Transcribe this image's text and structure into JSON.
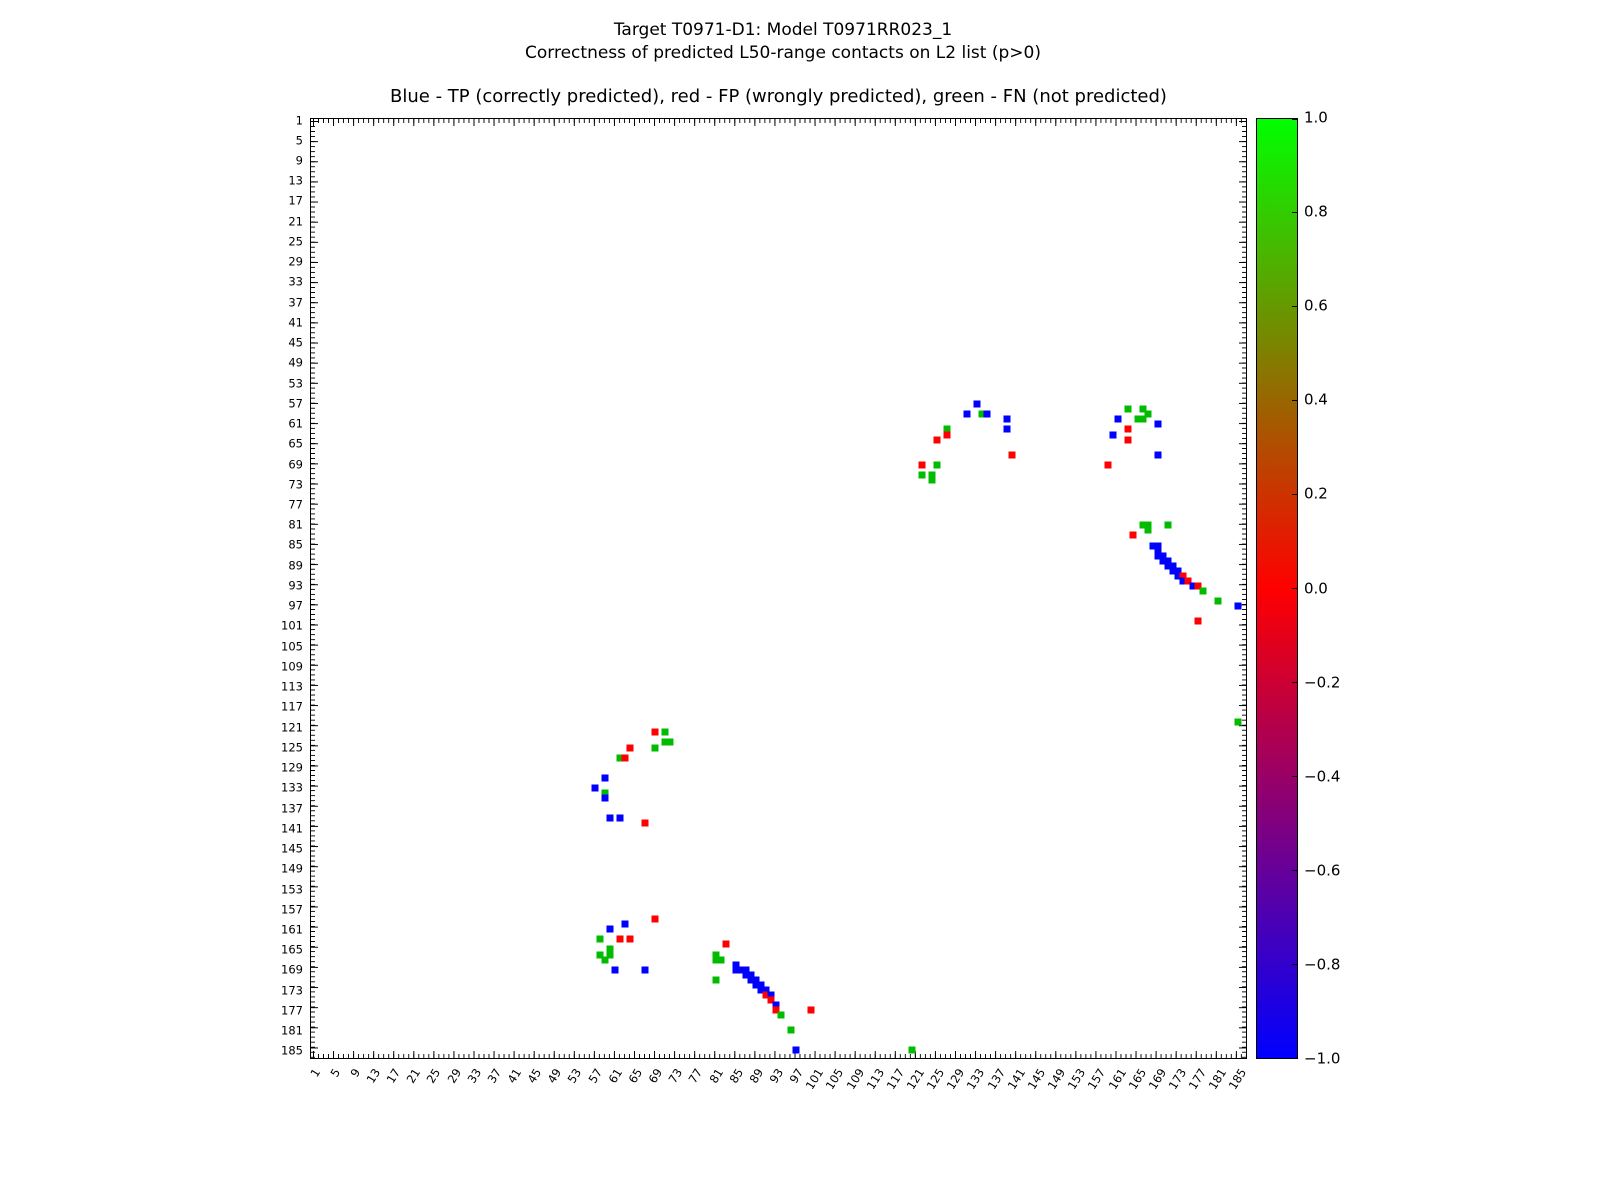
{
  "figure": {
    "title_line1": "Target T0971-D1: Model T0971RR023_1",
    "title_line2": "Correctness of predicted L50-range contacts on L2 list (p>0)"
  },
  "chart_data": {
    "type": "scatter",
    "title": "Blue - TP (correctly predicted), red - FP (wrongly predicted), green - FN (not predicted)",
    "xlabel": "",
    "ylabel": "",
    "x_range": [
      0.5,
      186.5
    ],
    "y_range": [
      0.5,
      186.5
    ],
    "y_axis_inverted": true,
    "grid": false,
    "tick_step": 4,
    "tick_values": [
      1,
      5,
      9,
      13,
      17,
      21,
      25,
      29,
      33,
      37,
      41,
      45,
      49,
      53,
      57,
      61,
      65,
      69,
      73,
      77,
      81,
      85,
      89,
      93,
      97,
      101,
      105,
      109,
      113,
      117,
      121,
      125,
      129,
      133,
      137,
      141,
      145,
      149,
      153,
      157,
      161,
      165,
      169,
      173,
      177,
      181,
      185
    ],
    "legend": {
      "TP": {
        "label": "TP (correctly predicted)",
        "color": "#0000ff",
        "value": -1
      },
      "FP": {
        "label": "FP (wrongly predicted)",
        "color": "#ff0000",
        "value": 0
      },
      "FN": {
        "label": "FN (not predicted)",
        "color": "#00bb00",
        "value": 1
      }
    },
    "symmetric": true,
    "contacts": [
      [
        57,
        133,
        "TP"
      ],
      [
        59,
        131,
        "TP"
      ],
      [
        59,
        134,
        "FN"
      ],
      [
        59,
        135,
        "TP"
      ],
      [
        60,
        139,
        "TP"
      ],
      [
        62,
        139,
        "TP"
      ],
      [
        62,
        127,
        "FN"
      ],
      [
        63,
        127,
        "FP"
      ],
      [
        64,
        125,
        "FP"
      ],
      [
        67,
        140,
        "FP"
      ],
      [
        69,
        122,
        "FP"
      ],
      [
        69,
        125,
        "FN"
      ],
      [
        71,
        122,
        "FN"
      ],
      [
        71,
        124,
        "FN"
      ],
      [
        72,
        124,
        "FN"
      ],
      [
        58,
        163,
        "FN"
      ],
      [
        58,
        166,
        "FN"
      ],
      [
        59,
        167,
        "FN"
      ],
      [
        60,
        161,
        "TP"
      ],
      [
        60,
        165,
        "FN"
      ],
      [
        60,
        166,
        "FN"
      ],
      [
        61,
        169,
        "TP"
      ],
      [
        62,
        163,
        "FP"
      ],
      [
        63,
        160,
        "TP"
      ],
      [
        64,
        163,
        "FP"
      ],
      [
        67,
        169,
        "TP"
      ],
      [
        69,
        159,
        "FP"
      ],
      [
        81,
        166,
        "FN"
      ],
      [
        81,
        167,
        "FN"
      ],
      [
        82,
        167,
        "FN"
      ],
      [
        81,
        171,
        "FN"
      ],
      [
        83,
        164,
        "FP"
      ],
      [
        85,
        168,
        "TP"
      ],
      [
        85,
        169,
        "TP"
      ],
      [
        86,
        169,
        "TP"
      ],
      [
        87,
        169,
        "TP"
      ],
      [
        87,
        170,
        "TP"
      ],
      [
        88,
        170,
        "TP"
      ],
      [
        88,
        171,
        "TP"
      ],
      [
        89,
        171,
        "TP"
      ],
      [
        89,
        172,
        "TP"
      ],
      [
        90,
        172,
        "TP"
      ],
      [
        90,
        173,
        "TP"
      ],
      [
        91,
        173,
        "TP"
      ],
      [
        91,
        174,
        "FP"
      ],
      [
        92,
        174,
        "TP"
      ],
      [
        92,
        175,
        "FP"
      ],
      [
        93,
        176,
        "TP"
      ],
      [
        93,
        177,
        "FP"
      ],
      [
        94,
        178,
        "FN"
      ],
      [
        96,
        181,
        "FN"
      ],
      [
        97,
        185,
        "TP"
      ],
      [
        100,
        177,
        "FP"
      ],
      [
        120,
        185,
        "FN"
      ]
    ],
    "colorbar": {
      "min": -1.0,
      "max": 1.0,
      "tick_labels": [
        "1.0",
        "0.8",
        "0.6",
        "0.4",
        "0.2",
        "0.0",
        "−0.2",
        "−0.4",
        "−0.6",
        "−0.8",
        "−1.0"
      ],
      "gradient_top_to_bottom": [
        "#00ff00",
        "#ff0000",
        "#0000ff"
      ]
    }
  }
}
